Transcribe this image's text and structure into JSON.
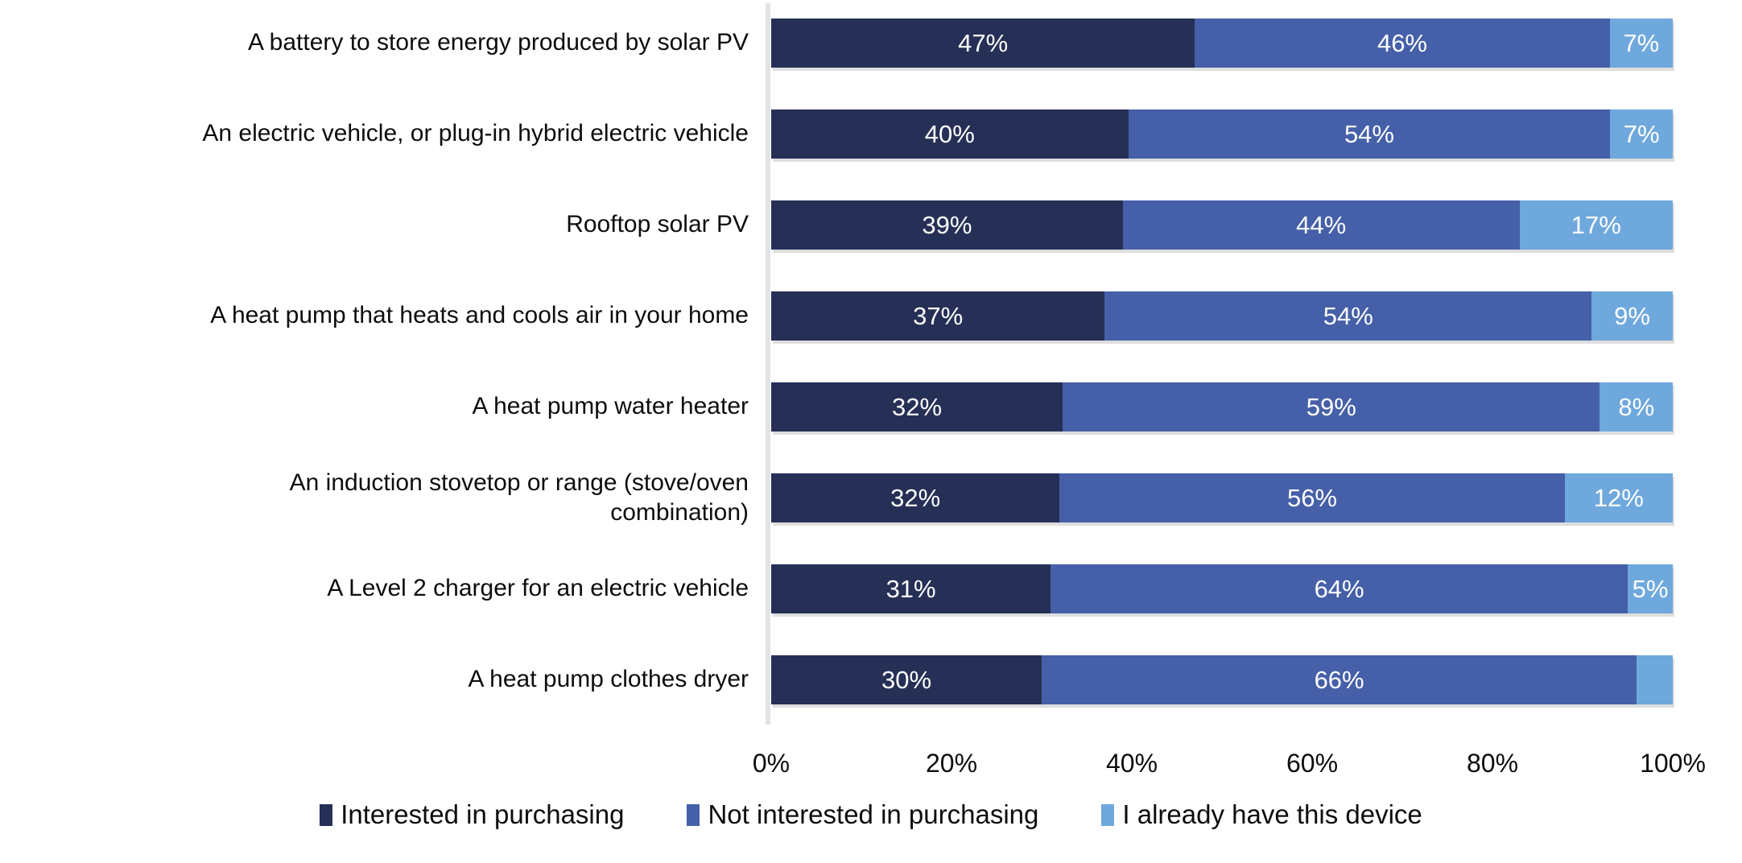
{
  "chart_data": {
    "type": "bar",
    "orientation": "horizontal",
    "stacked": true,
    "title": "",
    "xlabel": "",
    "ylabel": "",
    "xlim": [
      0,
      100
    ],
    "grid": false,
    "legend_position": "bottom",
    "x_ticks": [
      "0%",
      "20%",
      "40%",
      "60%",
      "80%",
      "100%"
    ],
    "categories": [
      "A battery to store energy produced by solar PV",
      "An electric vehicle, or plug-in hybrid electric vehicle",
      "Rooftop solar PV",
      "A heat pump that heats and cools air in your home",
      "A heat pump water heater",
      "An induction stovetop or range (stove/oven\ncombination)",
      "A Level 2 charger for an electric vehicle",
      "A heat pump clothes dryer"
    ],
    "series": [
      {
        "name": "Interested in purchasing",
        "color": "#263056",
        "values": [
          47,
          40,
          39,
          37,
          32,
          32,
          31,
          30
        ]
      },
      {
        "name": "Not interested in purchasing",
        "color": "#4560a8",
        "values": [
          46,
          54,
          44,
          54,
          59,
          56,
          64,
          66
        ]
      },
      {
        "name": "I already have this device",
        "color": "#6fa8dc",
        "values": [
          7,
          7,
          17,
          9,
          8,
          12,
          5,
          4
        ]
      }
    ],
    "segment_labels": [
      [
        "47%",
        "46%",
        "7%"
      ],
      [
        "40%",
        "54%",
        "7%"
      ],
      [
        "39%",
        "44%",
        "17%"
      ],
      [
        "37%",
        "54%",
        "9%"
      ],
      [
        "32%",
        "59%",
        "8%"
      ],
      [
        "32%",
        "56%",
        "12%"
      ],
      [
        "31%",
        "64%",
        "5%"
      ],
      [
        "30%",
        "66%",
        ""
      ]
    ]
  },
  "legend": {
    "items": [
      {
        "label": "Interested in purchasing",
        "color": "#263056"
      },
      {
        "label": "Not interested in purchasing",
        "color": "#4560a8"
      },
      {
        "label": "I already have this device",
        "color": "#6fa8dc"
      }
    ]
  },
  "colors": {
    "background": "#ffffff",
    "axis_line": "#e1e3e6",
    "category_text": "#0d0d0d",
    "tick_text": "#0d0d0d",
    "data_label_text": "#ffffff"
  }
}
